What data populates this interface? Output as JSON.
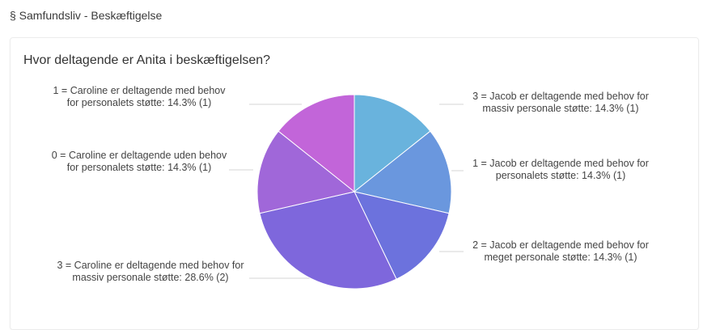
{
  "section": {
    "title": "§ Samfundsliv - Beskæftigelse"
  },
  "chart_data": {
    "type": "pie",
    "title": "Hvor deltagende er Anita i beskæftigelsen?",
    "slices": [
      {
        "label": "3 = Jacob er deltagende med behov for massiv personale støtte: 14.3% (1)",
        "count": 1,
        "percent": 14.3,
        "color": "#69b3dd"
      },
      {
        "label": "1 = Jacob er deltagende med behov for personalets støtte: 14.3% (1)",
        "count": 1,
        "percent": 14.3,
        "color": "#6a97de"
      },
      {
        "label": "2 = Jacob er deltagende med behov for meget personale støtte: 14.3% (1)",
        "count": 1,
        "percent": 14.3,
        "color": "#6c72dd"
      },
      {
        "label": "3 = Caroline er deltagende med behov for massiv personale støtte: 28.6% (2)",
        "count": 2,
        "percent": 28.6,
        "color": "#7e67dc"
      },
      {
        "label": "0 = Caroline er deltagende uden behov for personalets støtte: 14.3% (1)",
        "count": 1,
        "percent": 14.3,
        "color": "#a067d9"
      },
      {
        "label": "1 = Caroline er deltagende med behov for personalets støtte: 14.3% (1)",
        "count": 1,
        "percent": 14.3,
        "color": "#c265d9"
      }
    ]
  }
}
